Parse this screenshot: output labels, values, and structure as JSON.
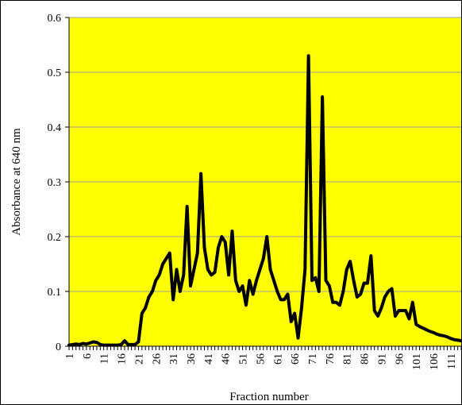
{
  "chart_data": {
    "type": "line",
    "title": "",
    "xlabel": "Fraction number",
    "ylabel": "Absorbance at 640 nm",
    "xlim": [
      1,
      114
    ],
    "ylim": [
      0,
      0.6
    ],
    "y_ticks": [
      "0",
      "0.1",
      "0.2",
      "0.3",
      "0.4",
      "0.5",
      "0.6"
    ],
    "x_ticks": [
      "1",
      "6",
      "11",
      "16",
      "21",
      "26",
      "31",
      "36",
      "41",
      "46",
      "51",
      "56",
      "61",
      "66",
      "71",
      "76",
      "81",
      "86",
      "91",
      "96",
      "101",
      "106",
      "111"
    ],
    "grid": "horizontal",
    "legend": "none",
    "colors": {
      "plot_background": "#ffff00",
      "line": "#000000",
      "grid": "#a0a0a0"
    },
    "series": [
      {
        "x": [
          1,
          2,
          3,
          4,
          5,
          6,
          7,
          8,
          9,
          10,
          11,
          12,
          13,
          14,
          15,
          16,
          17,
          18,
          19,
          20,
          21,
          22,
          23,
          24,
          25,
          26,
          27,
          28,
          29,
          30,
          31,
          32,
          33,
          34,
          35,
          36,
          37,
          38,
          39,
          40,
          41,
          42,
          43,
          44,
          45,
          46,
          47,
          48,
          49,
          50,
          51,
          52,
          53,
          54,
          55,
          56,
          57,
          58,
          59,
          60,
          61,
          62,
          63,
          64,
          65,
          66,
          67,
          68,
          69,
          70,
          71,
          72,
          73,
          74,
          75,
          76,
          77,
          78,
          79,
          80,
          81,
          82,
          83,
          84,
          85,
          86,
          87,
          88,
          89,
          90,
          91,
          92,
          93,
          94,
          95,
          96,
          97,
          98,
          99,
          100,
          101,
          102,
          103,
          104,
          105,
          106,
          107,
          108,
          109,
          110,
          111,
          112,
          113,
          114
        ],
        "values": [
          0.002,
          0.003,
          0.004,
          0.003,
          0.005,
          0.004,
          0.006,
          0.008,
          0.007,
          0.003,
          0.002,
          0.002,
          0.002,
          0.002,
          0.002,
          0.003,
          0.01,
          0.003,
          0.003,
          0.003,
          0.008,
          0.06,
          0.07,
          0.09,
          0.1,
          0.12,
          0.13,
          0.15,
          0.16,
          0.17,
          0.085,
          0.14,
          0.1,
          0.13,
          0.255,
          0.11,
          0.14,
          0.17,
          0.315,
          0.18,
          0.14,
          0.13,
          0.135,
          0.18,
          0.2,
          0.19,
          0.13,
          0.21,
          0.12,
          0.1,
          0.11,
          0.075,
          0.12,
          0.095,
          0.12,
          0.14,
          0.16,
          0.2,
          0.14,
          0.12,
          0.1,
          0.085,
          0.085,
          0.095,
          0.045,
          0.06,
          0.015,
          0.07,
          0.14,
          0.53,
          0.12,
          0.125,
          0.1,
          0.455,
          0.12,
          0.11,
          0.08,
          0.08,
          0.075,
          0.1,
          0.14,
          0.155,
          0.12,
          0.09,
          0.095,
          0.115,
          0.115,
          0.165,
          0.065,
          0.055,
          0.07,
          0.09,
          0.1,
          0.105,
          0.055,
          0.065,
          0.065,
          0.065,
          0.05,
          0.08,
          0.04,
          0.036,
          0.033,
          0.03,
          0.027,
          0.025,
          0.022,
          0.02,
          0.019,
          0.017,
          0.014,
          0.012,
          0.011,
          0.01
        ]
      }
    ]
  }
}
